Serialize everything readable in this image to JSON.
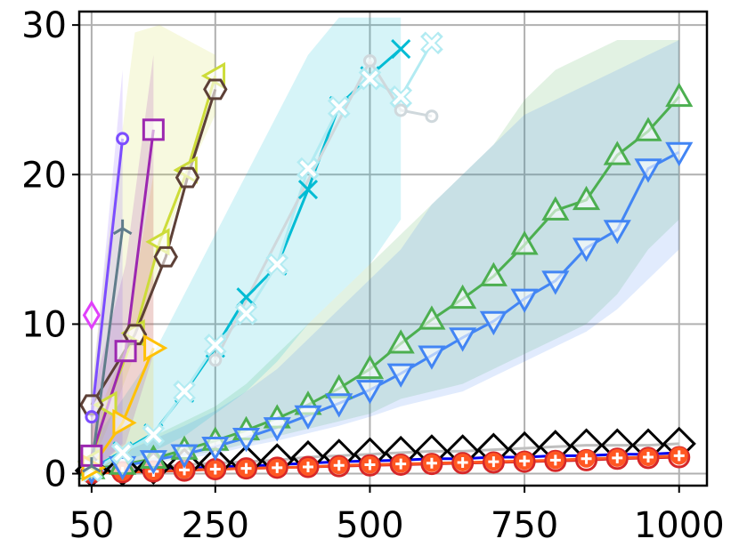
{
  "chart_data": {
    "type": "line",
    "title": "",
    "xlabel": "",
    "ylabel": "",
    "xlim": [
      30,
      1045
    ],
    "ylim": [
      -0.8,
      30.9
    ],
    "xticks": [
      50,
      250,
      500,
      750,
      1000
    ],
    "xtick_labels": [
      "50",
      "250",
      "500",
      "750",
      "1000"
    ],
    "yticks": [
      0,
      10,
      20,
      30
    ],
    "ytick_labels": [
      "0",
      "10",
      "20",
      "30"
    ],
    "grid": true,
    "legend": "none",
    "series": [
      {
        "color": "#7f7f7f",
        "marker": "diamond",
        "x": [
          50,
          100,
          150,
          200,
          250,
          300,
          350,
          400,
          450,
          500,
          550,
          600,
          650,
          700,
          750,
          800,
          850,
          900,
          950,
          1000
        ],
        "y": [
          0.2,
          0.3,
          0.4,
          0.6,
          0.7,
          0.8,
          0.9,
          1.1,
          1.2,
          1.3,
          1.4,
          1.5,
          1.5,
          1.6,
          1.7,
          1.8,
          1.9,
          1.9,
          1.9,
          2.0
        ]
      },
      {
        "color": "#0000ee",
        "marker": "dot",
        "x": [
          50,
          100,
          150,
          200,
          250,
          300,
          350,
          400,
          450,
          500,
          550,
          600,
          650,
          700,
          750,
          800,
          850,
          900,
          950,
          1000
        ],
        "y": [
          0.1,
          0.15,
          0.25,
          0.35,
          0.45,
          0.5,
          0.6,
          0.7,
          0.8,
          0.85,
          0.9,
          1.0,
          1.0,
          1.1,
          1.1,
          1.2,
          1.2,
          1.3,
          1.3,
          1.4
        ]
      },
      {
        "color": "#d62728",
        "marker": "circle",
        "x": [
          50,
          100,
          150,
          200,
          250,
          300,
          350,
          400,
          450,
          500,
          550,
          600,
          650,
          700,
          750,
          800,
          850,
          900,
          950,
          1000
        ],
        "y": [
          0.05,
          0.1,
          0.15,
          0.2,
          0.3,
          0.35,
          0.4,
          0.45,
          0.5,
          0.55,
          0.6,
          0.65,
          0.7,
          0.75,
          0.8,
          0.85,
          0.9,
          1.0,
          1.05,
          1.1
        ]
      },
      {
        "color": "#ff5722",
        "marker": "plus",
        "x": [
          50,
          100,
          150,
          200,
          250,
          300,
          350,
          400,
          450,
          500,
          550,
          600,
          650,
          700,
          750,
          800,
          850,
          900,
          950,
          1000
        ],
        "y": [
          0.05,
          0.1,
          0.15,
          0.25,
          0.3,
          0.35,
          0.4,
          0.45,
          0.55,
          0.6,
          0.65,
          0.7,
          0.75,
          0.8,
          0.85,
          0.9,
          1.0,
          1.05,
          1.1,
          1.2
        ]
      },
      {
        "color": "#4caf50",
        "marker": "triangle-up",
        "band": {
          "lower": [
            0.1,
            0.5,
            0.8,
            1.2,
            1.5,
            2.0,
            2.5,
            3.0,
            3.5,
            4.0,
            5.0,
            5.5,
            6.0,
            7.0,
            8.0,
            9.0,
            10.0,
            12.0,
            15.0,
            17.0
          ],
          "upper": [
            0.5,
            1.5,
            2.5,
            3.5,
            4.5,
            6.0,
            8.0,
            10.0,
            12.0,
            14.0,
            16.0,
            18.0,
            20.0,
            22.0,
            25.0,
            27.0,
            28.0,
            29.0,
            29.0,
            29.0
          ]
        },
        "x": [
          50,
          100,
          150,
          200,
          250,
          300,
          350,
          400,
          450,
          500,
          550,
          600,
          650,
          700,
          750,
          800,
          850,
          900,
          950,
          1000
        ],
        "y": [
          0.3,
          0.6,
          1.0,
          1.6,
          2.2,
          2.9,
          3.7,
          4.6,
          5.7,
          7.0,
          8.7,
          10.3,
          11.7,
          13.2,
          15.3,
          17.6,
          18.3,
          21.3,
          22.9,
          25.2
        ]
      },
      {
        "color": "#4285f4",
        "marker": "triangle-down",
        "band": {
          "lower": [
            0.1,
            0.4,
            0.7,
            1.0,
            1.3,
            1.8,
            2.2,
            2.7,
            3.2,
            3.8,
            4.5,
            5.0,
            5.5,
            6.5,
            7.5,
            8.5,
            9.5,
            11.0,
            13.0,
            15.0
          ],
          "upper": [
            0.5,
            1.4,
            2.3,
            3.2,
            4.2,
            5.5,
            7.0,
            9.0,
            11.0,
            13.0,
            15.0,
            18.0,
            20.0,
            22.0,
            24.0,
            25.0,
            26.0,
            27.0,
            28.0,
            29.0
          ]
        },
        "x": [
          50,
          100,
          150,
          200,
          250,
          300,
          350,
          400,
          450,
          500,
          550,
          600,
          650,
          700,
          750,
          800,
          850,
          900,
          950,
          1000
        ],
        "y": [
          0.2,
          0.5,
          0.9,
          1.3,
          1.8,
          2.4,
          3.1,
          3.9,
          4.7,
          5.6,
          6.7,
          7.9,
          9.1,
          10.2,
          11.7,
          12.9,
          15.1,
          16.3,
          20.4,
          21.5
        ]
      },
      {
        "color": "#00bcd4",
        "marker": "x",
        "band": {
          "lower": [
            0.2,
            0.8,
            1.5,
            2.5,
            4.0,
            5.5,
            7.5,
            10.0,
            12.0,
            14.0,
            17.0
          ],
          "upper": [
            2.0,
            5.0,
            8.0,
            12.0,
            16.0,
            20.0,
            24.0,
            28.0,
            30.5,
            30.5,
            30.5
          ]
        },
        "x": [
          50,
          100,
          150,
          200,
          250,
          300,
          350,
          400,
          450,
          500,
          550
        ],
        "y": [
          0.3,
          1.5,
          2.7,
          5.4,
          8.4,
          11.8,
          13.9,
          19.0,
          24.6,
          26.6,
          28.4
        ]
      },
      {
        "color": "#b2ebf2",
        "marker": "x-filled",
        "x": [
          50,
          100,
          150,
          200,
          250,
          300,
          350,
          400,
          450,
          500,
          550,
          600
        ],
        "y": [
          0.2,
          1.4,
          2.6,
          5.5,
          8.6,
          10.7,
          14.0,
          20.4,
          24.5,
          26.4,
          25.2,
          28.8
        ]
      },
      {
        "color": "#cfd8dc",
        "marker": "circle-small",
        "x": [
          250,
          500,
          550,
          600
        ],
        "y": [
          7.6,
          27.6,
          24.3,
          23.9
        ]
      },
      {
        "color": "#cddc39",
        "marker": "triangle-left",
        "band": {
          "lower": [
            0.5,
            3.0,
            8.0,
            14.0,
            20.0,
            24.0
          ],
          "upper": [
            6.0,
            15.0,
            29.5,
            30.0,
            29.0,
            28.0
          ]
        },
        "x": [
          50,
          75,
          120,
          160,
          205,
          250
        ],
        "y": [
          0.8,
          4.6,
          9.4,
          15.5,
          20.3,
          26.6
        ]
      },
      {
        "color": "#5d4037",
        "marker": "hexagon",
        "x": [
          50,
          120,
          170,
          205,
          250
        ],
        "y": [
          4.6,
          9.3,
          14.5,
          19.8,
          25.7
        ]
      },
      {
        "color": "#ffc107",
        "marker": "triangle-right",
        "band": {
          "lower": [
            0.2,
            1.0,
            3.0
          ],
          "upper": [
            3.0,
            8.0,
            20.0
          ]
        },
        "x": [
          50,
          100,
          150
        ],
        "y": [
          0.4,
          3.4,
          8.4
        ]
      },
      {
        "color": "#9c27b0",
        "marker": "square",
        "band": {
          "lower": [
            0.2,
            2.0,
            8.0
          ],
          "upper": [
            5.0,
            14.0,
            28.0
          ]
        },
        "x": [
          50,
          105,
          150
        ],
        "y": [
          1.2,
          8.2,
          23.0
        ]
      },
      {
        "color": "#7c4dff",
        "marker": "circle-small",
        "band": {
          "lower": [
            0.1,
            2.0
          ],
          "upper": [
            5.0,
            27.0
          ]
        },
        "x": [
          50,
          100
        ],
        "y": [
          3.8,
          22.4
        ]
      },
      {
        "color": "#607d8b",
        "marker": "tri-up",
        "x": [
          50,
          100
        ],
        "y": [
          0.5,
          16.4
        ]
      },
      {
        "color": "#e040fb",
        "marker": "thin-diamond",
        "x": [
          50
        ],
        "y": [
          10.6
        ]
      }
    ]
  }
}
